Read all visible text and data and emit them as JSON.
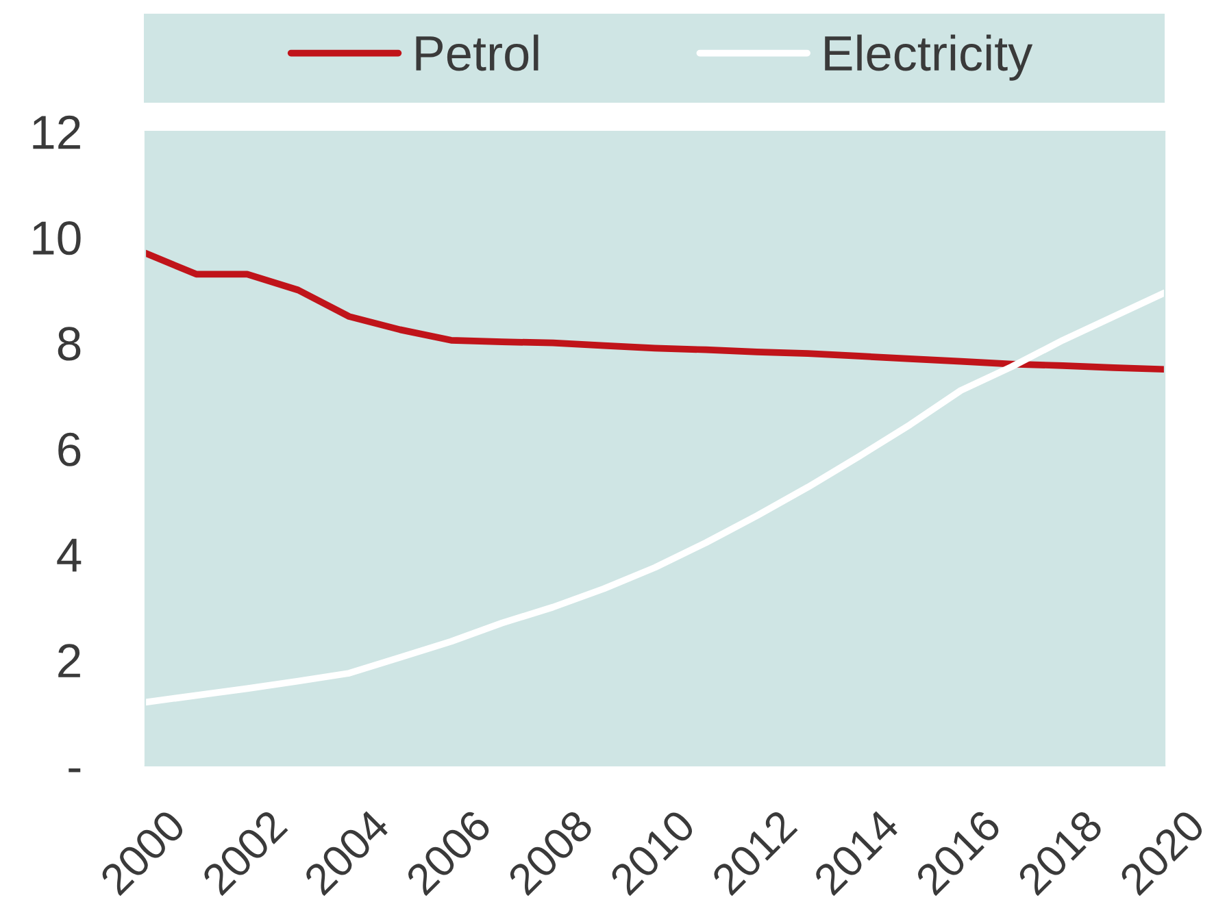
{
  "chart_data": {
    "type": "line",
    "x": [
      2000,
      2001,
      2002,
      2003,
      2004,
      2005,
      2006,
      2007,
      2008,
      2009,
      2010,
      2011,
      2012,
      2013,
      2014,
      2015,
      2016,
      2017,
      2018,
      2019,
      2020
    ],
    "series": [
      {
        "name": "Petrol",
        "color": "#c0141a",
        "values": [
          9.7,
          9.3,
          9.3,
          9.0,
          8.5,
          8.25,
          8.05,
          8.02,
          8.0,
          7.95,
          7.9,
          7.87,
          7.83,
          7.8,
          7.75,
          7.7,
          7.65,
          7.6,
          7.57,
          7.53,
          7.5
        ]
      },
      {
        "name": "Electricity",
        "color": "#ffffff",
        "values": [
          1.2,
          1.33,
          1.46,
          1.6,
          1.75,
          2.05,
          2.35,
          2.7,
          3.0,
          3.35,
          3.75,
          4.22,
          4.73,
          5.27,
          5.85,
          6.45,
          7.1,
          7.55,
          8.05,
          8.5,
          8.95
        ]
      }
    ],
    "xlim": [
      2000,
      2020
    ],
    "xticks": [
      2000,
      2002,
      2004,
      2006,
      2008,
      2010,
      2012,
      2014,
      2016,
      2018,
      2020
    ],
    "ylim": [
      0,
      12
    ],
    "yticks": [
      {
        "value": 0,
        "label": "-"
      },
      2,
      4,
      6,
      8,
      10,
      12
    ],
    "legend": "top",
    "line_style": "solid"
  }
}
